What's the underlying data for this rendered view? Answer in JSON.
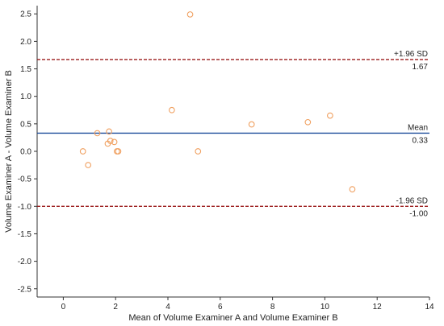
{
  "chart_data": {
    "type": "scatter",
    "title": "",
    "xlabel": "Mean of Volume Examiner A and Volume Examiner B",
    "ylabel": "Volume Examiner A - Volume Examiner B",
    "xlim": [
      -1,
      14
    ],
    "ylim": [
      -2.65,
      2.65
    ],
    "x_ticks": [
      0,
      2,
      4,
      6,
      8,
      10,
      12,
      14
    ],
    "y_ticks": [
      -2.5,
      -2.0,
      -1.5,
      -1.0,
      -0.5,
      0.0,
      0.5,
      1.0,
      1.5,
      2.0,
      2.5
    ],
    "x_tick_labels": [
      "0",
      "2",
      "4",
      "6",
      "8",
      "10",
      "12",
      "14"
    ],
    "y_tick_labels": [
      "-2.5",
      "-2.0",
      "-1.5",
      "-1.0",
      "-0.5",
      "0.0",
      "0.5",
      "1.0",
      "1.5",
      "2.0",
      "2.5"
    ],
    "grid": false,
    "marker_color": "#f0a060",
    "points": [
      {
        "x": 0.75,
        "y": 0.0
      },
      {
        "x": 0.95,
        "y": -0.25
      },
      {
        "x": 1.3,
        "y": 0.33
      },
      {
        "x": 1.7,
        "y": 0.14
      },
      {
        "x": 1.75,
        "y": 0.36
      },
      {
        "x": 1.8,
        "y": 0.19
      },
      {
        "x": 1.95,
        "y": 0.17
      },
      {
        "x": 2.05,
        "y": 0.0
      },
      {
        "x": 2.1,
        "y": 0.0
      },
      {
        "x": 4.15,
        "y": 0.75
      },
      {
        "x": 4.85,
        "y": 2.49
      },
      {
        "x": 5.15,
        "y": 0.0
      },
      {
        "x": 7.2,
        "y": 0.49
      },
      {
        "x": 9.35,
        "y": 0.53
      },
      {
        "x": 10.2,
        "y": 0.65
      },
      {
        "x": 11.05,
        "y": -0.69
      }
    ],
    "reference_lines": [
      {
        "label": "+1.96 SD",
        "value": 1.67,
        "value_label": "1.67",
        "color": "#9b1b1b",
        "style": "dashed"
      },
      {
        "label": "Mean",
        "value": 0.33,
        "value_label": "0.33",
        "color": "#1f4e9b",
        "style": "solid"
      },
      {
        "label": "-1.96 SD",
        "value": -1.0,
        "value_label": "-1.00",
        "color": "#9b1b1b",
        "style": "dashed"
      }
    ]
  }
}
